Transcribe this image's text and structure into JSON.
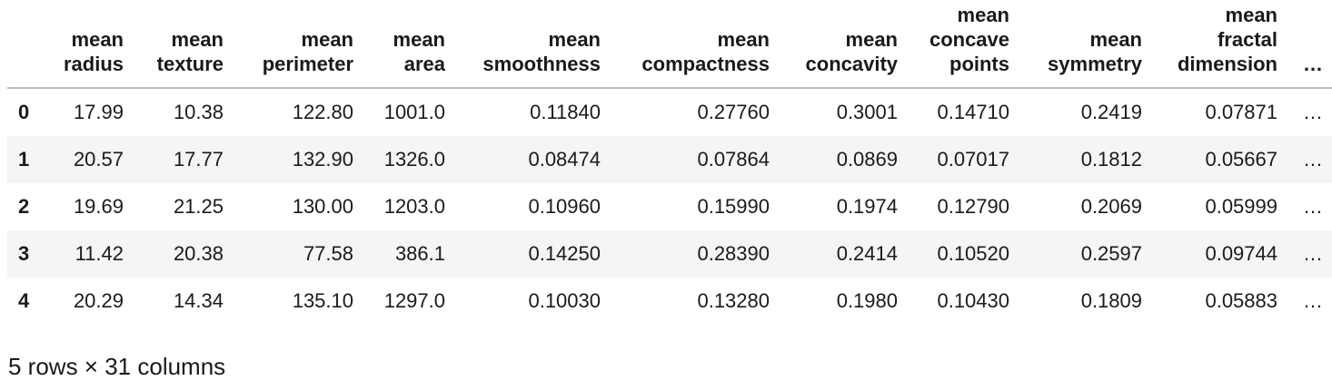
{
  "table": {
    "columns": [
      "mean radius",
      "mean texture",
      "mean perimeter",
      "mean area",
      "mean smoothness",
      "mean compactness",
      "mean concavity",
      "mean concave points",
      "mean symmetry",
      "mean fractal dimension",
      "…"
    ],
    "rows": [
      [
        "0",
        "17.99",
        "10.38",
        "122.80",
        "1001.0",
        "0.11840",
        "0.27760",
        "0.3001",
        "0.14710",
        "0.2419",
        "0.07871",
        "…"
      ],
      [
        "1",
        "20.57",
        "17.77",
        "132.90",
        "1326.0",
        "0.08474",
        "0.07864",
        "0.0869",
        "0.07017",
        "0.1812",
        "0.05667",
        "…"
      ],
      [
        "2",
        "19.69",
        "21.25",
        "130.00",
        "1203.0",
        "0.10960",
        "0.15990",
        "0.1974",
        "0.12790",
        "0.2069",
        "0.05999",
        "…"
      ],
      [
        "3",
        "11.42",
        "20.38",
        "77.58",
        "386.1",
        "0.14250",
        "0.28390",
        "0.2414",
        "0.10520",
        "0.2597",
        "0.09744",
        "…"
      ],
      [
        "4",
        "20.29",
        "14.34",
        "135.10",
        "1297.0",
        "0.10030",
        "0.13280",
        "0.1980",
        "0.10430",
        "0.1809",
        "0.05883",
        "…"
      ]
    ]
  },
  "footer": "5 rows × 31 columns"
}
